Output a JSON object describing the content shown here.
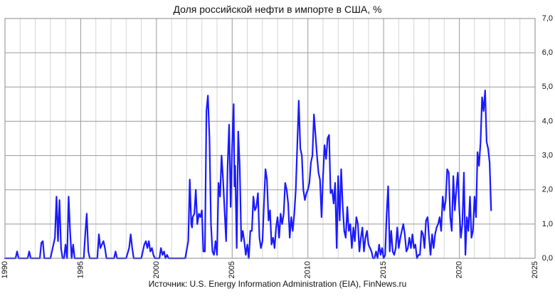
{
  "chart_data": {
    "type": "line",
    "title": "Доля российской нефти в импорте в США, %",
    "source": "Источник: U.S. Energy Information Administration (EIA), FinNews.ru",
    "xlabel": "",
    "ylabel": "",
    "xlim": [
      1990,
      2025
    ],
    "ylim": [
      0,
      7
    ],
    "x_ticks": [
      "1990",
      "1995",
      "2000",
      "2005",
      "2010",
      "2015",
      "2020",
      "2025"
    ],
    "y_ticks": [
      "0,0",
      "1,0",
      "2,0",
      "3,0",
      "4,0",
      "5,0",
      "6,0",
      "7,0"
    ],
    "y_axis_side": "right",
    "grid": true,
    "series_color": "#1a1aff",
    "series": [
      {
        "name": "",
        "x": [
          1990.0,
          1990.7,
          1990.8,
          1990.9,
          1991.0,
          1991.5,
          1991.6,
          1991.7,
          1992.0,
          1992.3,
          1992.4,
          1992.5,
          1992.6,
          1993.0,
          1993.2,
          1993.3,
          1993.4,
          1993.5,
          1993.6,
          1993.7,
          1993.8,
          1993.9,
          1994.0,
          1994.1,
          1994.2,
          1994.3,
          1994.4,
          1994.5,
          1994.6,
          1994.7,
          1994.8,
          1994.9,
          1995.0,
          1995.2,
          1995.3,
          1995.4,
          1995.5,
          1995.6,
          1995.7,
          1995.9,
          1996.1,
          1996.2,
          1996.3,
          1996.4,
          1996.5,
          1996.6,
          1996.7,
          1996.8,
          1996.9,
          1997.2,
          1997.3,
          1997.4,
          1997.5,
          1998.0,
          1998.2,
          1998.3,
          1998.4,
          1998.5,
          1999.0,
          1999.2,
          1999.3,
          1999.4,
          1999.5,
          1999.6,
          1999.7,
          1999.8,
          1999.9,
          2000.0,
          2000.2,
          2000.3,
          2000.4,
          2000.5,
          2000.6,
          2000.7,
          2000.8,
          2001.0,
          2001.5,
          2001.9,
          2002.1,
          2002.2,
          2002.3,
          2002.35,
          2002.4,
          2002.5,
          2002.6,
          2002.7,
          2002.8,
          2002.9,
          2003.0,
          2003.1,
          2003.2,
          2003.3,
          2003.4,
          2003.5,
          2003.55,
          2003.6,
          2003.7,
          2003.8,
          2003.9,
          2004.0,
          2004.1,
          2004.2,
          2004.3,
          2004.4,
          2004.5,
          2004.6,
          2004.7,
          2004.8,
          2004.9,
          2005.0,
          2005.1,
          2005.15,
          2005.2,
          2005.3,
          2005.4,
          2005.5,
          2005.6,
          2005.7,
          2005.8,
          2005.9,
          2006.0,
          2006.1,
          2006.2,
          2006.3,
          2006.4,
          2006.5,
          2006.6,
          2006.7,
          2006.8,
          2006.9,
          2007.0,
          2007.1,
          2007.2,
          2007.3,
          2007.4,
          2007.5,
          2007.6,
          2007.7,
          2007.8,
          2007.9,
          2008.0,
          2008.1,
          2008.2,
          2008.3,
          2008.4,
          2008.5,
          2008.6,
          2008.7,
          2008.8,
          2008.9,
          2009.0,
          2009.1,
          2009.2,
          2009.3,
          2009.4,
          2009.5,
          2009.6,
          2009.7,
          2009.8,
          2009.9,
          2010.0,
          2010.1,
          2010.2,
          2010.3,
          2010.4,
          2010.5,
          2010.6,
          2010.7,
          2010.8,
          2010.9,
          2011.0,
          2011.1,
          2011.2,
          2011.3,
          2011.4,
          2011.5,
          2011.6,
          2011.7,
          2011.8,
          2011.9,
          2012.0,
          2012.1,
          2012.2,
          2012.3,
          2012.4,
          2012.5,
          2012.6,
          2012.7,
          2012.8,
          2012.9,
          2013.0,
          2013.1,
          2013.2,
          2013.3,
          2013.4,
          2013.5,
          2013.6,
          2013.7,
          2013.8,
          2013.9,
          2014.0,
          2014.1,
          2014.2,
          2014.3,
          2014.4,
          2014.5,
          2014.6,
          2014.7,
          2014.8,
          2014.9,
          2015.0,
          2015.1,
          2015.2,
          2015.3,
          2015.4,
          2015.5,
          2015.6,
          2015.7,
          2015.8,
          2015.9,
          2016.0,
          2016.1,
          2016.2,
          2016.3,
          2016.4,
          2016.5,
          2016.6,
          2016.7,
          2016.8,
          2016.9,
          2017.0,
          2017.1,
          2017.2,
          2017.3,
          2017.4,
          2017.5,
          2017.6,
          2017.7,
          2017.8,
          2017.9,
          2018.0,
          2018.1,
          2018.2,
          2018.3,
          2018.4,
          2018.5,
          2018.6,
          2018.7,
          2018.8,
          2018.9,
          2019.0,
          2019.1,
          2019.2,
          2019.3,
          2019.4,
          2019.5,
          2019.6,
          2019.7,
          2019.8,
          2019.9,
          2020.0,
          2020.1,
          2020.2,
          2020.3,
          2020.4,
          2020.5,
          2020.6,
          2020.7,
          2020.8,
          2020.9,
          2021.0,
          2021.1,
          2021.2,
          2021.3,
          2021.4,
          2021.5,
          2021.6,
          2021.7,
          2021.8,
          2021.9,
          2022.0,
          2022.1
        ],
        "values": [
          0,
          0,
          0.2,
          0,
          0,
          0,
          0.2,
          0,
          0,
          0,
          0.45,
          0.5,
          0,
          0,
          0.4,
          0.6,
          1.8,
          0.5,
          1.7,
          0.3,
          0,
          0,
          0.4,
          0,
          1.8,
          0.8,
          0,
          0.4,
          0,
          0,
          0,
          0,
          0,
          0,
          0.7,
          1.3,
          0.2,
          0,
          0,
          0,
          0,
          0.7,
          0.3,
          0.4,
          0.5,
          0.3,
          0,
          0,
          0,
          0,
          0.2,
          0,
          0,
          0,
          0.3,
          0.7,
          0.3,
          0,
          0,
          0.4,
          0.5,
          0.3,
          0.5,
          0.2,
          0.3,
          0.1,
          0,
          0,
          0,
          0.3,
          0.1,
          0.2,
          0,
          0.1,
          0,
          0,
          0,
          0,
          0.5,
          2.3,
          1.0,
          0.9,
          1.2,
          1.3,
          2.0,
          1.0,
          1.3,
          1.2,
          1.4,
          0.2,
          0.2,
          4.3,
          4.75,
          3.5,
          2.3,
          1.0,
          0.2,
          0.1,
          0.5,
          0.1,
          2.2,
          1.8,
          3.0,
          2.3,
          1.4,
          0.5,
          2.7,
          3.9,
          1.5,
          3.3,
          4.5,
          2.1,
          2.7,
          0.3,
          3.7,
          2.7,
          0.5,
          0.8,
          0.5,
          0.1,
          0.4,
          0,
          0.8,
          0.8,
          1.8,
          1.4,
          1.5,
          1.9,
          0.6,
          0.3,
          0.5,
          1.6,
          2.6,
          2.3,
          1.1,
          1.4,
          0.4,
          0.6,
          0.3,
          0.9,
          1.2,
          0.6,
          1.3,
          1.0,
          1.3,
          2.2,
          2.0,
          1.6,
          0.6,
          1.2,
          0.8,
          1.3,
          2.0,
          3.3,
          4.6,
          3.2,
          3.0,
          2.0,
          1.7,
          1.9,
          2.0,
          2.2,
          2.8,
          3.0,
          4.2,
          3.6,
          3.0,
          2.5,
          2.3,
          1.2,
          2.4,
          3.3,
          2.9,
          3.5,
          3.6,
          1.9,
          2.0,
          1.6,
          2.2,
          0.3,
          2.4,
          1.1,
          2.6,
          1.5,
          0.8,
          0.6,
          1.5,
          0.8,
          1.0,
          0.3,
          0.9,
          0.5,
          1.2,
          1.0,
          0.2,
          0.6,
          0.9,
          0.2,
          0.6,
          0.8,
          0.4,
          0.3,
          0.2,
          0,
          0,
          0.2,
          0,
          0.4,
          0.1,
          0.3,
          0,
          0.1,
          1.3,
          2.1,
          0.2,
          0.8,
          0.2,
          0.1,
          0.3,
          0.9,
          0.3,
          0.6,
          0.8,
          1.0,
          0.7,
          0.2,
          0.3,
          0.6,
          0.3,
          0.7,
          0.3,
          0.4,
          0,
          0.1,
          0.1,
          0.8,
          0.7,
          0.3,
          1.1,
          1.2,
          0.6,
          0.1,
          0.7,
          0.3,
          0.7,
          0.9,
          1.0,
          1.2,
          0.8,
          1.8,
          1.4,
          1.7,
          2.6,
          2.5,
          1.2,
          0.8,
          2.4,
          1.4,
          2.0,
          2.5,
          1.4,
          0.6,
          1.0,
          2.5,
          0.1,
          1.2,
          0.8,
          1.8,
          0.6,
          0.8,
          1.8,
          1.2,
          3.1,
          2.7,
          3.4,
          4.7,
          4.3,
          4.9,
          3.4,
          3.2,
          2.8,
          1.4
        ]
      }
    ]
  }
}
